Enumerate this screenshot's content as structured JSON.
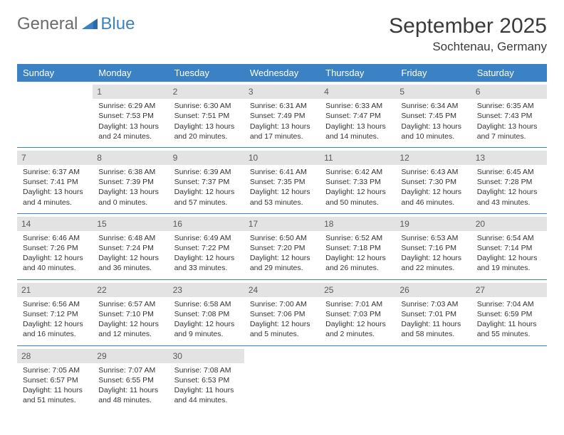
{
  "logo": {
    "text_gray": "General",
    "text_blue": "Blue"
  },
  "title": "September 2025",
  "location": "Sochtenau, Germany",
  "colors": {
    "header_bg": "#3b82c4",
    "header_text": "#ffffff",
    "daynum_bg": "#e3e3e3",
    "daynum_text": "#5a5a5a",
    "body_text": "#333333",
    "page_bg": "#ffffff",
    "logo_gray": "#6b6b6b",
    "logo_blue": "#3b82c4",
    "separator": "#3b82c4"
  },
  "day_headers": [
    "Sunday",
    "Monday",
    "Tuesday",
    "Wednesday",
    "Thursday",
    "Friday",
    "Saturday"
  ],
  "weeks": [
    [
      {
        "num": "",
        "sunrise": "",
        "sunset": "",
        "daylight": ""
      },
      {
        "num": "1",
        "sunrise": "Sunrise: 6:29 AM",
        "sunset": "Sunset: 7:53 PM",
        "daylight": "Daylight: 13 hours and 24 minutes."
      },
      {
        "num": "2",
        "sunrise": "Sunrise: 6:30 AM",
        "sunset": "Sunset: 7:51 PM",
        "daylight": "Daylight: 13 hours and 20 minutes."
      },
      {
        "num": "3",
        "sunrise": "Sunrise: 6:31 AM",
        "sunset": "Sunset: 7:49 PM",
        "daylight": "Daylight: 13 hours and 17 minutes."
      },
      {
        "num": "4",
        "sunrise": "Sunrise: 6:33 AM",
        "sunset": "Sunset: 7:47 PM",
        "daylight": "Daylight: 13 hours and 14 minutes."
      },
      {
        "num": "5",
        "sunrise": "Sunrise: 6:34 AM",
        "sunset": "Sunset: 7:45 PM",
        "daylight": "Daylight: 13 hours and 10 minutes."
      },
      {
        "num": "6",
        "sunrise": "Sunrise: 6:35 AM",
        "sunset": "Sunset: 7:43 PM",
        "daylight": "Daylight: 13 hours and 7 minutes."
      }
    ],
    [
      {
        "num": "7",
        "sunrise": "Sunrise: 6:37 AM",
        "sunset": "Sunset: 7:41 PM",
        "daylight": "Daylight: 13 hours and 4 minutes."
      },
      {
        "num": "8",
        "sunrise": "Sunrise: 6:38 AM",
        "sunset": "Sunset: 7:39 PM",
        "daylight": "Daylight: 13 hours and 0 minutes."
      },
      {
        "num": "9",
        "sunrise": "Sunrise: 6:39 AM",
        "sunset": "Sunset: 7:37 PM",
        "daylight": "Daylight: 12 hours and 57 minutes."
      },
      {
        "num": "10",
        "sunrise": "Sunrise: 6:41 AM",
        "sunset": "Sunset: 7:35 PM",
        "daylight": "Daylight: 12 hours and 53 minutes."
      },
      {
        "num": "11",
        "sunrise": "Sunrise: 6:42 AM",
        "sunset": "Sunset: 7:33 PM",
        "daylight": "Daylight: 12 hours and 50 minutes."
      },
      {
        "num": "12",
        "sunrise": "Sunrise: 6:43 AM",
        "sunset": "Sunset: 7:30 PM",
        "daylight": "Daylight: 12 hours and 46 minutes."
      },
      {
        "num": "13",
        "sunrise": "Sunrise: 6:45 AM",
        "sunset": "Sunset: 7:28 PM",
        "daylight": "Daylight: 12 hours and 43 minutes."
      }
    ],
    [
      {
        "num": "14",
        "sunrise": "Sunrise: 6:46 AM",
        "sunset": "Sunset: 7:26 PM",
        "daylight": "Daylight: 12 hours and 40 minutes."
      },
      {
        "num": "15",
        "sunrise": "Sunrise: 6:48 AM",
        "sunset": "Sunset: 7:24 PM",
        "daylight": "Daylight: 12 hours and 36 minutes."
      },
      {
        "num": "16",
        "sunrise": "Sunrise: 6:49 AM",
        "sunset": "Sunset: 7:22 PM",
        "daylight": "Daylight: 12 hours and 33 minutes."
      },
      {
        "num": "17",
        "sunrise": "Sunrise: 6:50 AM",
        "sunset": "Sunset: 7:20 PM",
        "daylight": "Daylight: 12 hours and 29 minutes."
      },
      {
        "num": "18",
        "sunrise": "Sunrise: 6:52 AM",
        "sunset": "Sunset: 7:18 PM",
        "daylight": "Daylight: 12 hours and 26 minutes."
      },
      {
        "num": "19",
        "sunrise": "Sunrise: 6:53 AM",
        "sunset": "Sunset: 7:16 PM",
        "daylight": "Daylight: 12 hours and 22 minutes."
      },
      {
        "num": "20",
        "sunrise": "Sunrise: 6:54 AM",
        "sunset": "Sunset: 7:14 PM",
        "daylight": "Daylight: 12 hours and 19 minutes."
      }
    ],
    [
      {
        "num": "21",
        "sunrise": "Sunrise: 6:56 AM",
        "sunset": "Sunset: 7:12 PM",
        "daylight": "Daylight: 12 hours and 16 minutes."
      },
      {
        "num": "22",
        "sunrise": "Sunrise: 6:57 AM",
        "sunset": "Sunset: 7:10 PM",
        "daylight": "Daylight: 12 hours and 12 minutes."
      },
      {
        "num": "23",
        "sunrise": "Sunrise: 6:58 AM",
        "sunset": "Sunset: 7:08 PM",
        "daylight": "Daylight: 12 hours and 9 minutes."
      },
      {
        "num": "24",
        "sunrise": "Sunrise: 7:00 AM",
        "sunset": "Sunset: 7:06 PM",
        "daylight": "Daylight: 12 hours and 5 minutes."
      },
      {
        "num": "25",
        "sunrise": "Sunrise: 7:01 AM",
        "sunset": "Sunset: 7:03 PM",
        "daylight": "Daylight: 12 hours and 2 minutes."
      },
      {
        "num": "26",
        "sunrise": "Sunrise: 7:03 AM",
        "sunset": "Sunset: 7:01 PM",
        "daylight": "Daylight: 11 hours and 58 minutes."
      },
      {
        "num": "27",
        "sunrise": "Sunrise: 7:04 AM",
        "sunset": "Sunset: 6:59 PM",
        "daylight": "Daylight: 11 hours and 55 minutes."
      }
    ],
    [
      {
        "num": "28",
        "sunrise": "Sunrise: 7:05 AM",
        "sunset": "Sunset: 6:57 PM",
        "daylight": "Daylight: 11 hours and 51 minutes."
      },
      {
        "num": "29",
        "sunrise": "Sunrise: 7:07 AM",
        "sunset": "Sunset: 6:55 PM",
        "daylight": "Daylight: 11 hours and 48 minutes."
      },
      {
        "num": "30",
        "sunrise": "Sunrise: 7:08 AM",
        "sunset": "Sunset: 6:53 PM",
        "daylight": "Daylight: 11 hours and 44 minutes."
      },
      {
        "num": "",
        "sunrise": "",
        "sunset": "",
        "daylight": ""
      },
      {
        "num": "",
        "sunrise": "",
        "sunset": "",
        "daylight": ""
      },
      {
        "num": "",
        "sunrise": "",
        "sunset": "",
        "daylight": ""
      },
      {
        "num": "",
        "sunrise": "",
        "sunset": "",
        "daylight": ""
      }
    ]
  ]
}
